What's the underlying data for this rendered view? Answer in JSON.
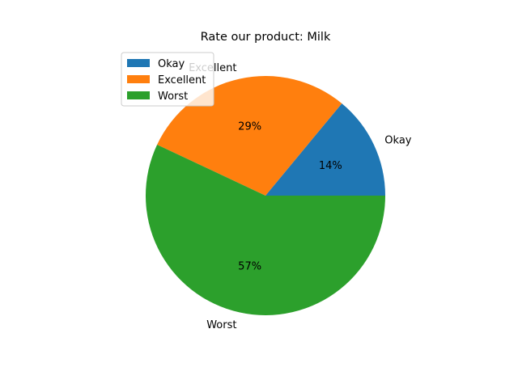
{
  "chart_data": {
    "type": "pie",
    "title": "Rate our product: Milk",
    "slices": [
      {
        "label": "Okay",
        "value": 14,
        "pct_label": "14%",
        "color": "#1f77b4"
      },
      {
        "label": "Excellent",
        "value": 29,
        "pct_label": "29%",
        "color": "#ff7f0e"
      },
      {
        "label": "Worst",
        "value": 57,
        "pct_label": "57%",
        "color": "#2ca02c"
      }
    ],
    "legend": {
      "placement": "upper-left",
      "entries": [
        "Okay",
        "Excellent",
        "Worst"
      ]
    }
  }
}
